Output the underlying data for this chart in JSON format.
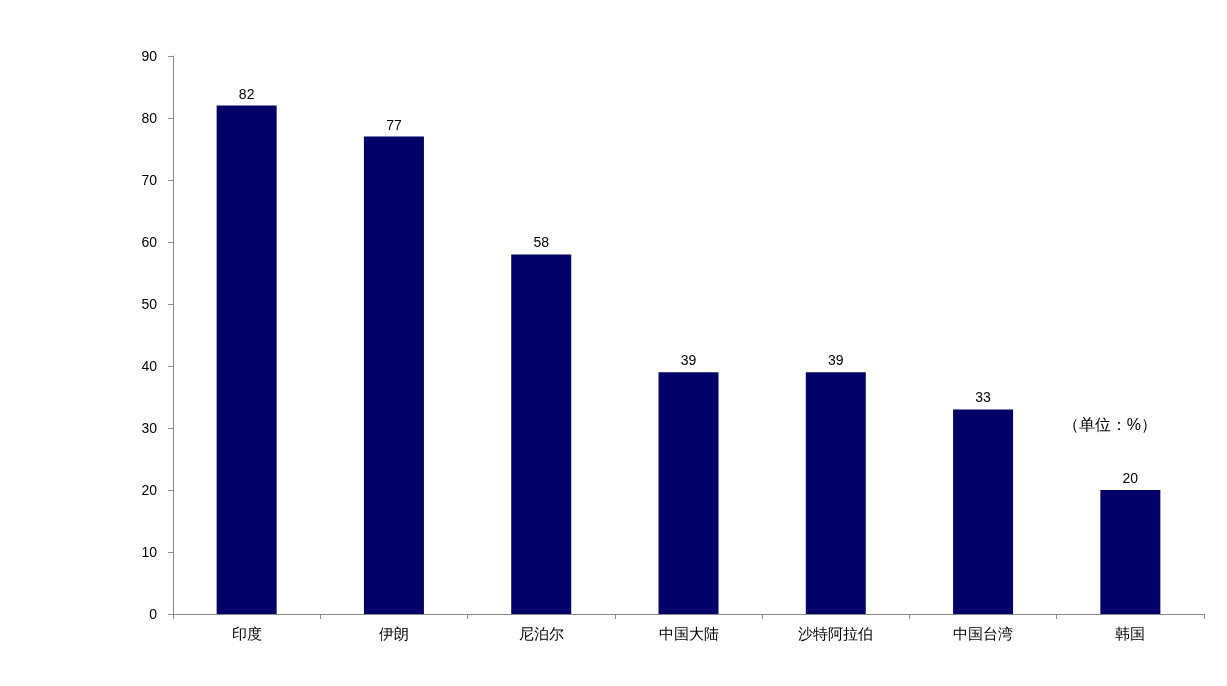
{
  "chart_data": {
    "type": "bar",
    "categories": [
      "印度",
      "伊朗",
      "尼泊尔",
      "中国大陆",
      "沙特阿拉伯",
      "中国台湾",
      "韩国"
    ],
    "values": [
      82,
      77,
      58,
      39,
      39,
      33,
      20
    ],
    "color": "#000066",
    "ylim": [
      0,
      90
    ],
    "yticks": [
      0,
      10,
      20,
      30,
      40,
      50,
      60,
      70,
      80,
      90
    ],
    "grid": false,
    "data_labels": true,
    "annotations": [
      "（单位：%）"
    ]
  }
}
